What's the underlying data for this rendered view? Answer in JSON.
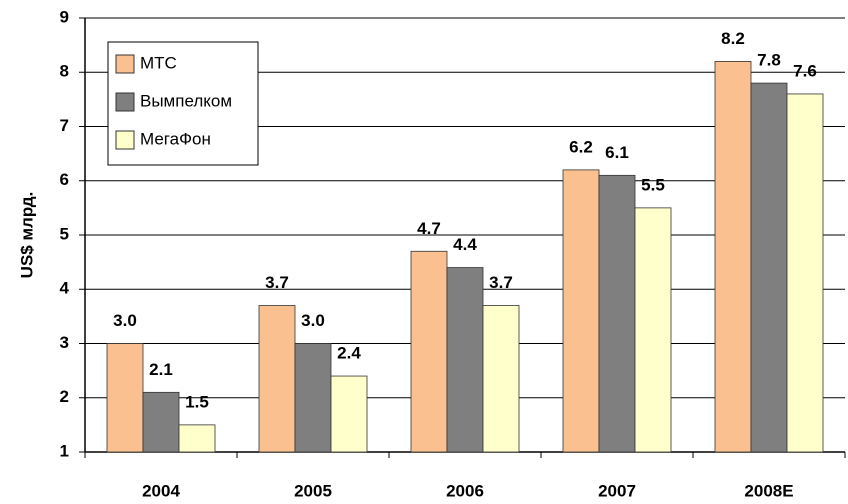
{
  "chart_data": {
    "type": "bar",
    "y_label": "US$ млрд.",
    "categories": [
      "2004",
      "2005",
      "2006",
      "2007",
      "2008E"
    ],
    "series": [
      {
        "name": "МТС",
        "color": "#fac090",
        "values": [
          3.0,
          3.7,
          4.7,
          6.2,
          8.2
        ],
        "value_labels": [
          "3.0",
          "3.7",
          "4.7",
          "6.2",
          "8.2"
        ]
      },
      {
        "name": "Вымпелком",
        "color": "#7f7f7f",
        "values": [
          2.1,
          3.0,
          4.4,
          6.1,
          7.8
        ],
        "value_labels": [
          "2.1",
          "3.0",
          "4.4",
          "6.1",
          "7.8"
        ]
      },
      {
        "name": "МегаФон",
        "color": "#ffffcc",
        "values": [
          1.5,
          2.4,
          3.7,
          5.5,
          7.6
        ],
        "value_labels": [
          "1.5",
          "2.4",
          "3.7",
          "5.5",
          "7.6"
        ]
      }
    ],
    "ylim": [
      1,
      9
    ],
    "yticks": [
      1,
      2,
      3,
      4,
      5,
      6,
      7,
      8,
      9
    ],
    "grid": true,
    "legend": "upper left"
  }
}
